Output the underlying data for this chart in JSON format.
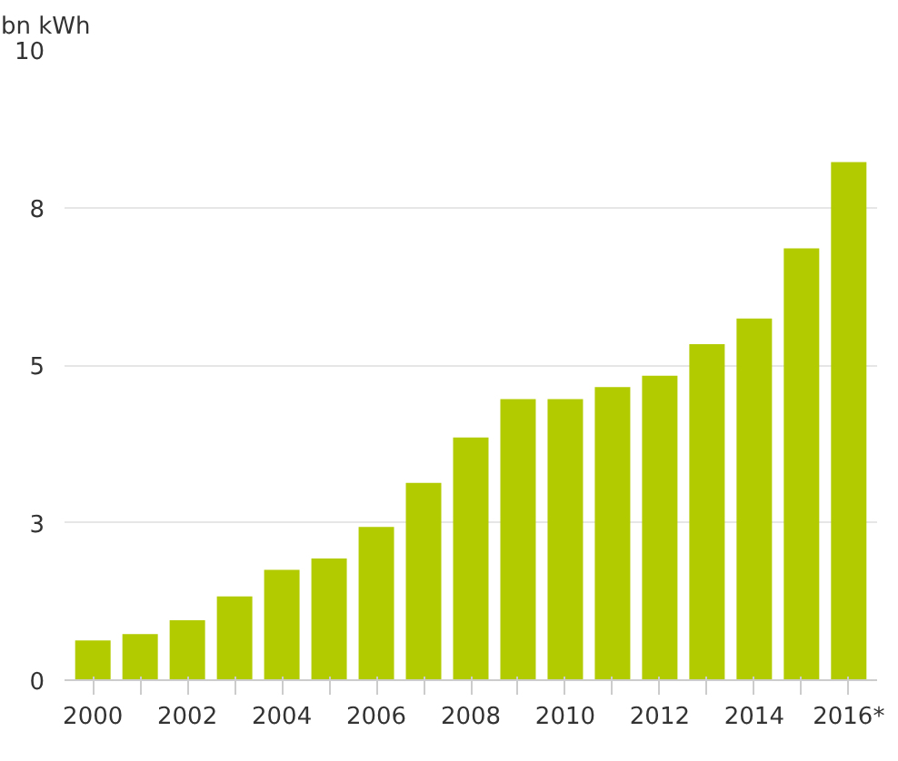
{
  "chart_data": {
    "type": "bar",
    "ylabel": "bn kWh",
    "categories": [
      "2000",
      null,
      "2002",
      null,
      "2004",
      null,
      "2006",
      null,
      "2008",
      null,
      "2010",
      null,
      "2012",
      null,
      "2014",
      null,
      "2016*"
    ],
    "values": [
      0.63,
      0.73,
      0.95,
      1.33,
      1.75,
      1.93,
      2.43,
      3.13,
      3.85,
      4.46,
      4.46,
      4.65,
      4.83,
      5.33,
      5.74,
      6.85,
      8.22
    ],
    "color": "#b2cb00",
    "ylim": [
      0,
      10
    ],
    "yticks": [
      0,
      {
        "value": 2.5,
        "label": "3"
      },
      5,
      {
        "value": 7.5,
        "label": "8"
      },
      10
    ],
    "grid": "y"
  }
}
